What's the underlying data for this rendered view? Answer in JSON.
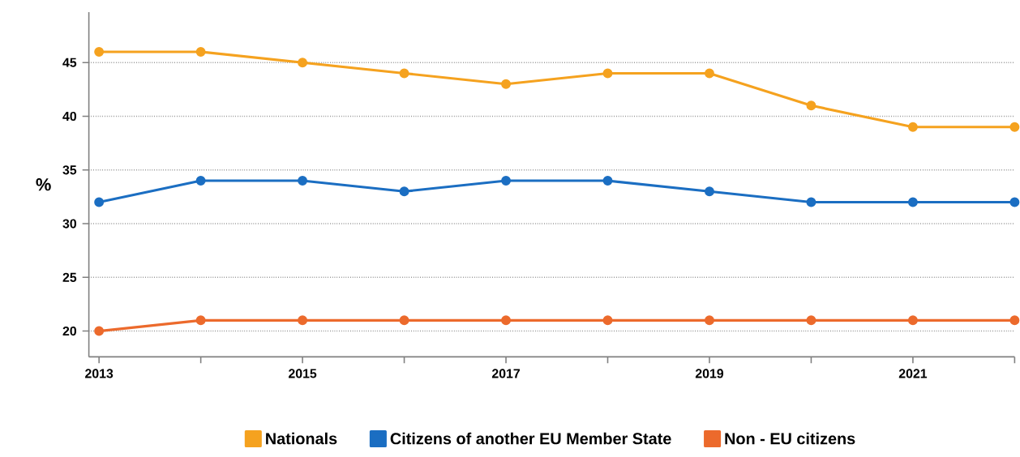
{
  "chart_data": {
    "type": "line",
    "ylabel": "%",
    "x": [
      2013,
      2014,
      2015,
      2016,
      2017,
      2018,
      2019,
      2020,
      2021,
      2022
    ],
    "series": [
      {
        "name": "Nationals",
        "color": "#f5a21f",
        "values": [
          46,
          46,
          45,
          44,
          43,
          44,
          44,
          41,
          39,
          39
        ]
      },
      {
        "name": "Citizens of another EU Member State",
        "color": "#1b6ec2",
        "values": [
          32,
          34,
          34,
          33,
          34,
          34,
          33,
          32,
          32,
          32
        ]
      },
      {
        "name": "Non - EU citizens",
        "color": "#ec6a2c",
        "values": [
          20,
          21,
          21,
          21,
          21,
          21,
          21,
          21,
          21,
          21
        ]
      }
    ],
    "xlim": [
      2012.9,
      2022
    ],
    "ylim": [
      17.6,
      49.7
    ],
    "xticks": [
      2013,
      {
        "value": 2014,
        "label": null
      },
      2015,
      {
        "value": 2016,
        "label": null
      },
      2017,
      {
        "value": 2018,
        "label": null
      },
      2019,
      {
        "value": 2020,
        "label": null
      },
      2021,
      {
        "value": 2022,
        "label": null
      }
    ],
    "yticks": [
      20,
      25,
      30,
      35,
      40,
      45
    ],
    "grid": "y",
    "legend": "bottom",
    "marker": "circle",
    "line_style": "solid"
  }
}
